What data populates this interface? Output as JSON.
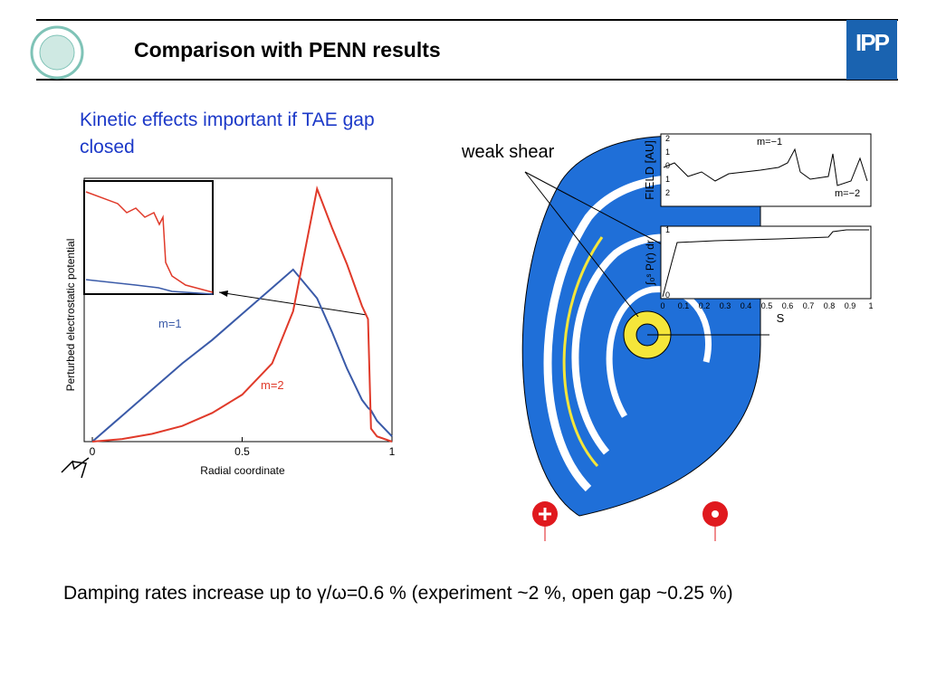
{
  "header": {
    "title": "Comparison with PENN results",
    "logo": "IPP"
  },
  "subtitle": "Kinetic effects important if TAE gap closed",
  "chart_data": {
    "type": "line",
    "xlabel": "Radial coordinate",
    "ylabel": "Perturbed electrostatic potential",
    "x": [
      0,
      0.1,
      0.2,
      0.3,
      0.4,
      0.5,
      0.6,
      0.67,
      0.75,
      0.8,
      0.85,
      0.9,
      0.92,
      0.93,
      0.95,
      1
    ],
    "series": [
      {
        "name": "m=1",
        "color": "#3a5aa8",
        "values": [
          0,
          0.1,
          0.2,
          0.3,
          0.39,
          0.49,
          0.59,
          0.66,
          0.55,
          0.42,
          0.28,
          0.16,
          0.13,
          0.12,
          0.08,
          0.02
        ]
      },
      {
        "name": "m=2",
        "color": "#e03a2a",
        "values": [
          0,
          0.01,
          0.03,
          0.06,
          0.11,
          0.18,
          0.3,
          0.5,
          0.97,
          0.82,
          0.68,
          0.52,
          0.47,
          0.05,
          0.02,
          0
        ]
      }
    ],
    "xlim": [
      0,
      1
    ],
    "xticks": [
      0,
      0.5,
      1
    ],
    "ylim": [
      0,
      1
    ]
  },
  "figure": {
    "label": "weak shear",
    "panel1": {
      "ylabel": "FIELD [AU]",
      "yticks": [
        "2",
        "1",
        "0",
        "1",
        "2"
      ],
      "labels": [
        "m=−1",
        "m=−2"
      ]
    },
    "panel2": {
      "ylabel": "∫₀ˢ P(r) dr",
      "yticks": [
        "1",
        "0"
      ],
      "xlabel": "S",
      "xticks": [
        0,
        0.1,
        0.2,
        0.3,
        0.4,
        0.5,
        0.6,
        0.7,
        0.8,
        0.9,
        1
      ]
    }
  },
  "footer": "Damping rates increase up to γ/ω=0.6 % (experiment ~2 %, open gap ~0.25 %)"
}
